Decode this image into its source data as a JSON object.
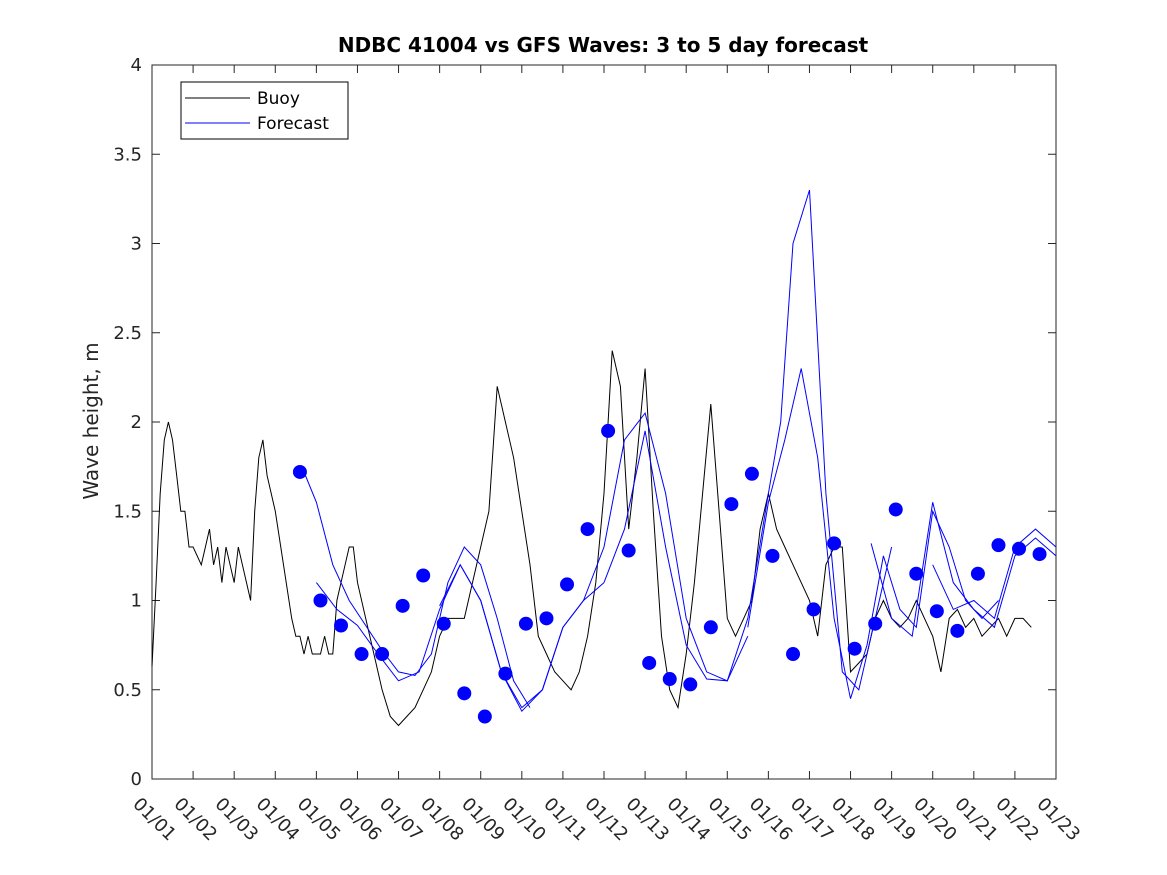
{
  "chart_data": {
    "type": "line",
    "title": "NDBC 41004 vs GFS Waves: 3 to 5 day forecast",
    "xlabel": "",
    "ylabel": "Wave height, m",
    "xlim": [
      0,
      22
    ],
    "ylim": [
      0,
      4
    ],
    "yticks": [
      "0",
      "0.5",
      "1",
      "1.5",
      "2",
      "2.5",
      "3",
      "3.5",
      "4"
    ],
    "xticks": [
      "01/01",
      "01/02",
      "01/03",
      "01/04",
      "01/05",
      "01/06",
      "01/07",
      "01/08",
      "01/09",
      "01/10",
      "01/11",
      "01/12",
      "01/13",
      "01/14",
      "01/15",
      "01/16",
      "01/17",
      "01/18",
      "01/19",
      "01/20",
      "01/21",
      "01/22",
      "01/23"
    ],
    "legend": {
      "position": "top-left",
      "entries": [
        "Buoy",
        "Forecast"
      ]
    },
    "colors": {
      "buoy": "#000000",
      "forecast": "#0000ff",
      "marker": "#0000ff"
    },
    "series": [
      {
        "name": "Buoy",
        "x": [
          0,
          0.1,
          0.2,
          0.3,
          0.4,
          0.5,
          0.6,
          0.7,
          0.8,
          0.9,
          1.0,
          1.2,
          1.3,
          1.4,
          1.5,
          1.6,
          1.7,
          1.8,
          1.9,
          2.0,
          2.1,
          2.2,
          2.3,
          2.4,
          2.5,
          2.6,
          2.7,
          2.8,
          2.9,
          3.0,
          3.2,
          3.4,
          3.5,
          3.6,
          3.7,
          3.8,
          3.9,
          4.0,
          4.1,
          4.2,
          4.3,
          4.4,
          4.5,
          4.6,
          4.7,
          4.8,
          4.9,
          5.0,
          5.2,
          5.4,
          5.6,
          5.8,
          6.0,
          6.2,
          6.4,
          6.6,
          6.8,
          7.0,
          7.2,
          7.4,
          7.6,
          7.8,
          8.0,
          8.2,
          8.4,
          8.6,
          8.8,
          9.0,
          9.2,
          9.4,
          9.6,
          9.8,
          10.0,
          10.2,
          10.4,
          10.6,
          10.8,
          11.0,
          11.2,
          11.4,
          11.6,
          11.8,
          12.0,
          12.2,
          12.4,
          12.6,
          12.8,
          13.0,
          13.2,
          13.4,
          13.6,
          13.8,
          14.0,
          14.2,
          14.4,
          14.6,
          14.8,
          15.0,
          15.2,
          15.4,
          15.6,
          15.8,
          16.0,
          16.2,
          16.4,
          16.6,
          16.8,
          17.0,
          17.2,
          17.4,
          17.6,
          17.8,
          18.0,
          18.2,
          18.4,
          18.6,
          18.8,
          19.0,
          19.2,
          19.4,
          19.6,
          19.8,
          20.0,
          20.2,
          20.4,
          20.6,
          20.8,
          21.0,
          21.2,
          21.4
        ],
        "values": [
          0.63,
          1.1,
          1.6,
          1.9,
          2.0,
          1.9,
          1.7,
          1.5,
          1.5,
          1.3,
          1.3,
          1.2,
          1.3,
          1.4,
          1.2,
          1.3,
          1.1,
          1.3,
          1.2,
          1.1,
          1.3,
          1.2,
          1.1,
          1.0,
          1.5,
          1.8,
          1.9,
          1.7,
          1.6,
          1.5,
          1.2,
          0.9,
          0.8,
          0.8,
          0.7,
          0.8,
          0.7,
          0.7,
          0.7,
          0.8,
          0.7,
          0.7,
          1.0,
          1.1,
          1.2,
          1.3,
          1.3,
          1.1,
          0.9,
          0.7,
          0.5,
          0.35,
          0.3,
          0.35,
          0.4,
          0.5,
          0.6,
          0.8,
          0.9,
          0.9,
          0.9,
          1.1,
          1.3,
          1.5,
          2.2,
          2.0,
          1.8,
          1.5,
          1.2,
          0.8,
          0.7,
          0.6,
          0.55,
          0.5,
          0.6,
          0.8,
          1.1,
          1.6,
          2.4,
          2.2,
          1.4,
          1.8,
          2.3,
          1.5,
          0.8,
          0.5,
          0.4,
          0.7,
          1.1,
          1.6,
          2.1,
          1.5,
          0.9,
          0.8,
          0.9,
          1.0,
          1.4,
          1.6,
          1.4,
          1.3,
          1.2,
          1.1,
          1.0,
          0.8,
          1.2,
          1.3,
          1.3,
          0.6,
          0.65,
          0.7,
          0.9,
          1.0,
          0.9,
          0.85,
          0.9,
          1.0,
          0.9,
          0.8,
          0.6,
          0.9,
          0.95,
          0.85,
          0.9,
          0.8,
          0.85,
          0.9,
          0.8,
          0.9,
          0.9,
          0.85
        ]
      },
      {
        "name": "Forecast",
        "runs": [
          {
            "x": [
              3.7,
              4.0,
              4.4,
              4.8,
              5.2,
              5.6,
              6.0,
              6.4,
              6.8,
              7.2,
              7.6,
              8.0,
              8.4,
              8.8,
              9.2
            ],
            "values": [
              1.72,
              1.55,
              1.2,
              1.0,
              0.86,
              0.72,
              0.6,
              0.58,
              0.7,
              1.1,
              1.3,
              1.2,
              0.9,
              0.55,
              0.4
            ]
          },
          {
            "x": [
              4.0,
              4.5,
              5.0,
              5.5,
              6.0,
              6.5,
              7.0,
              7.5,
              8.0,
              8.5,
              9.0,
              9.5,
              10.0,
              10.5,
              11.0
            ],
            "values": [
              1.1,
              0.95,
              0.86,
              0.7,
              0.55,
              0.6,
              0.95,
              1.2,
              1.0,
              0.6,
              0.4,
              0.5,
              0.85,
              1.0,
              1.1
            ]
          },
          {
            "x": [
              7.0,
              7.5,
              8.0,
              8.5,
              9.0,
              9.5,
              10.0,
              10.5,
              11.0,
              11.5,
              12.0,
              12.5,
              13.0,
              13.5,
              14.0,
              14.5
            ],
            "values": [
              0.97,
              1.2,
              1.0,
              0.6,
              0.38,
              0.5,
              0.85,
              1.0,
              1.3,
              1.9,
              2.05,
              1.6,
              0.9,
              0.6,
              0.55,
              0.8
            ]
          },
          {
            "x": [
              11.0,
              11.5,
              12.0,
              12.5,
              13.0,
              13.5,
              14.0,
              14.5,
              15.0,
              15.3,
              15.6,
              16.0,
              16.4,
              16.8,
              17.2,
              17.6,
              18.0
            ],
            "values": [
              1.1,
              1.4,
              1.95,
              1.3,
              0.75,
              0.56,
              0.55,
              0.9,
              1.6,
              2.0,
              3.0,
              3.3,
              1.6,
              0.6,
              0.5,
              0.9,
              1.3
            ]
          },
          {
            "x": [
              14.5,
              15.0,
              15.4,
              15.8,
              16.2,
              16.6,
              17.0,
              17.4,
              17.8,
              18.2,
              18.6,
              19.0,
              19.4,
              19.8,
              20.2,
              20.6
            ],
            "values": [
              0.85,
              1.55,
              1.9,
              2.3,
              1.8,
              0.9,
              0.45,
              0.75,
              1.25,
              0.95,
              0.85,
              1.5,
              1.3,
              1.0,
              0.9,
              1.0
            ]
          },
          {
            "x": [
              17.5,
              18.0,
              18.5,
              19.0,
              19.5,
              20.0,
              20.5,
              21.0,
              21.5,
              22.0
            ],
            "values": [
              1.32,
              0.9,
              0.8,
              1.55,
              1.1,
              0.95,
              0.85,
              1.25,
              1.35,
              1.25
            ]
          },
          {
            "x": [
              19.0,
              19.5,
              20.0,
              20.5,
              21.0,
              21.5,
              22.0
            ],
            "values": [
              1.2,
              0.95,
              1.0,
              0.9,
              1.3,
              1.4,
              1.3
            ]
          }
        ],
        "markers": {
          "x": [
            3.6,
            4.1,
            4.6,
            5.1,
            5.6,
            6.1,
            6.6,
            7.1,
            7.6,
            8.1,
            8.6,
            9.1,
            9.6,
            10.1,
            10.6,
            11.1,
            11.6,
            12.1,
            12.6,
            13.1,
            13.6,
            14.1,
            14.6,
            15.1,
            15.6,
            16.1,
            16.6,
            17.1,
            17.6,
            18.1,
            18.6,
            19.1,
            19.6,
            20.1,
            20.6,
            21.1,
            21.6
          ],
          "values": [
            1.72,
            1.0,
            0.86,
            0.7,
            0.7,
            0.97,
            1.14,
            0.87,
            0.48,
            0.35,
            0.59,
            0.87,
            0.9,
            1.09,
            1.4,
            1.95,
            1.28,
            0.65,
            0.56,
            0.53,
            0.85,
            1.54,
            1.71,
            1.25,
            0.7,
            0.95,
            1.32,
            0.73,
            0.87,
            1.51,
            1.15,
            0.94,
            0.83,
            1.15,
            1.31,
            1.29,
            1.26
          ]
        }
      }
    ]
  }
}
